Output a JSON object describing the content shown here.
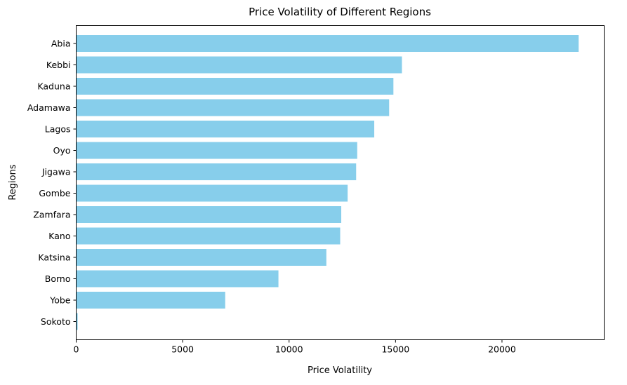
{
  "chart_data": {
    "type": "bar",
    "orientation": "horizontal",
    "title": "Price Volatility of Different Regions",
    "xlabel": "Price Volatility",
    "ylabel": "Regions",
    "categories": [
      "Abia",
      "Kebbi",
      "Kaduna",
      "Adamawa",
      "Lagos",
      "Oyo",
      "Jigawa",
      "Gombe",
      "Zamfara",
      "Kano",
      "Katsina",
      "Borno",
      "Yobe",
      "Sokoto"
    ],
    "values": [
      23600,
      15300,
      14900,
      14700,
      14000,
      13200,
      13150,
      12750,
      12450,
      12400,
      11750,
      9500,
      7000,
      70
    ],
    "xlim": [
      0,
      24800
    ],
    "xticks": [
      0,
      5000,
      10000,
      15000,
      20000
    ],
    "grid": false,
    "bar_color": "#87ceeb"
  }
}
